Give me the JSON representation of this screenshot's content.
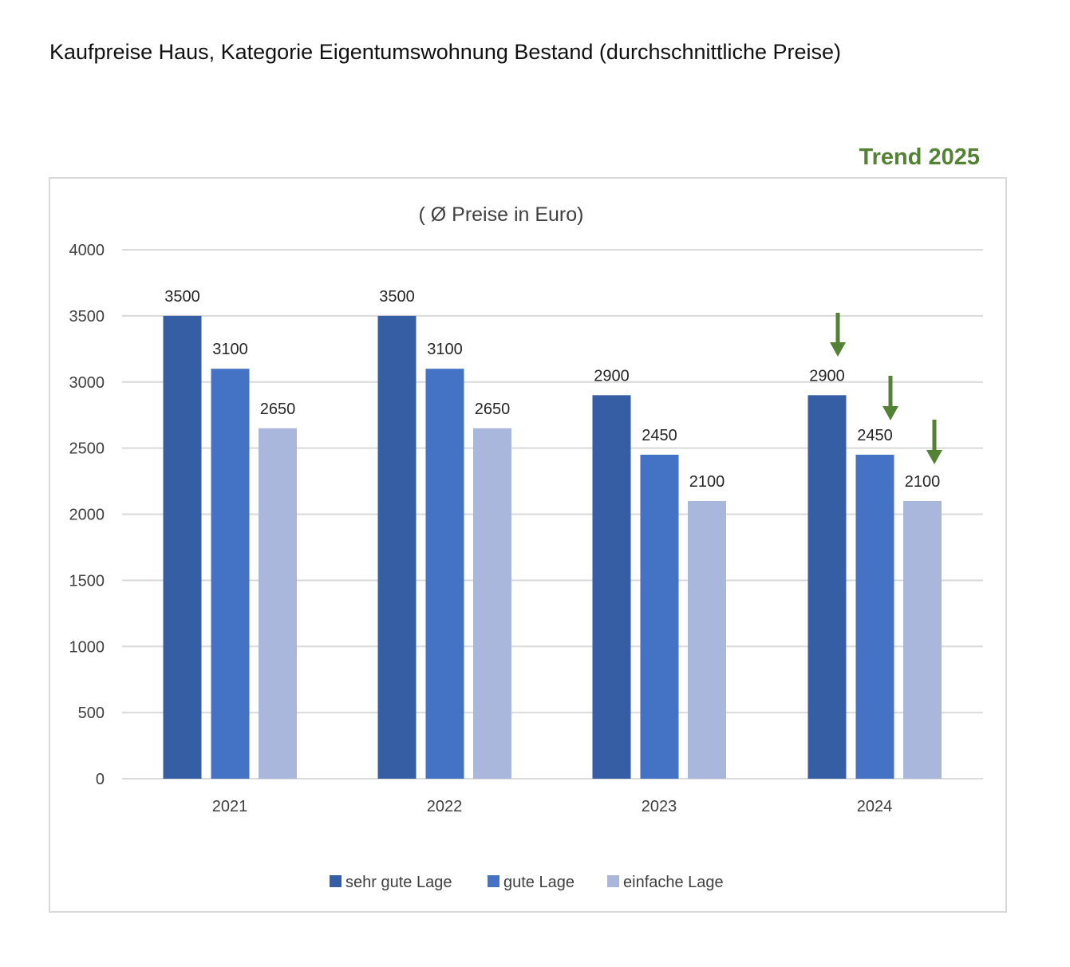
{
  "page": {
    "title": "Kaufpreise Haus, Kategorie Eigentumswohnung Bestand (durchschnittliche Preise)",
    "trend_label": "Trend 2025",
    "trend_color": "#548235"
  },
  "chart_data": {
    "type": "bar",
    "title": "( Ø Preise in Euro)",
    "categories": [
      "2021",
      "2022",
      "2023",
      "2024"
    ],
    "series": [
      {
        "name": "sehr gute Lage",
        "color": "#365ea5",
        "values": [
          3500,
          3500,
          2900,
          2900
        ]
      },
      {
        "name": "gute Lage",
        "color": "#4472c4",
        "values": [
          3100,
          3100,
          2450,
          2450
        ]
      },
      {
        "name": "einfache Lage",
        "color": "#a9b7dc",
        "values": [
          2650,
          2650,
          2100,
          2100
        ]
      }
    ],
    "ylim": [
      0,
      4000
    ],
    "yticks": [
      0,
      500,
      1000,
      1500,
      2000,
      2500,
      3000,
      3500,
      4000
    ],
    "grid": true,
    "gridline_color": "#d9d9d9",
    "legend_position": "bottom",
    "data_labels": true,
    "trend_arrows": {
      "category": "2024",
      "direction": "down",
      "series": [
        "sehr gute Lage",
        "gute Lage",
        "einfache Lage"
      ]
    }
  }
}
